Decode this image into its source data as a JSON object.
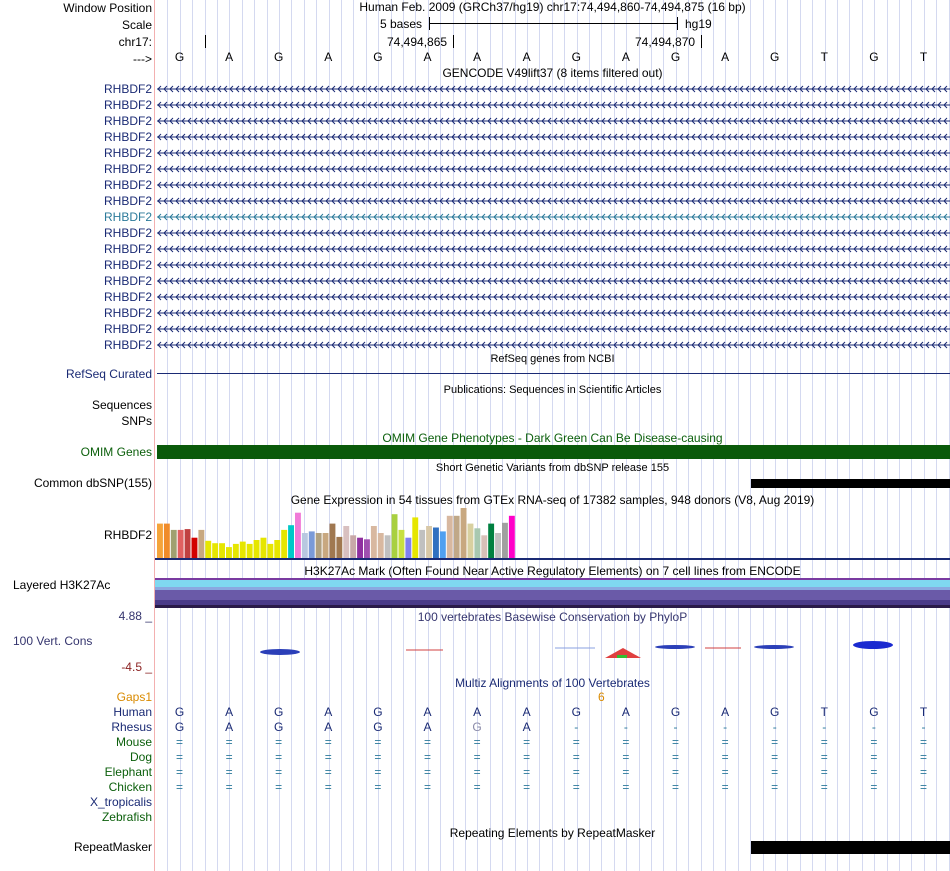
{
  "header": {
    "window_position_label": "Window Position",
    "scale_label": "Scale",
    "chrom_label": "chr17:",
    "strand_label": "--->",
    "position_text": "Human Feb. 2009 (GRCh37/hg19)   chr17:74,494,860-74,494,875 (16 bp)",
    "scale_text": "5 bases",
    "assembly": "hg19",
    "coord_1": "74,494,865",
    "coord_2": "74,494,870"
  },
  "ref_bases": [
    "G",
    "A",
    "G",
    "A",
    "G",
    "A",
    "A",
    "A",
    "G",
    "A",
    "G",
    "A",
    "G",
    "T",
    "G",
    "T"
  ],
  "gencode": {
    "title": "GENCODE V49lift37 (8 items filtered out)",
    "rows": [
      {
        "label": "RHBDF2",
        "highlight": false
      },
      {
        "label": "RHBDF2",
        "highlight": false
      },
      {
        "label": "RHBDF2",
        "highlight": false
      },
      {
        "label": "RHBDF2",
        "highlight": false
      },
      {
        "label": "RHBDF2",
        "highlight": false
      },
      {
        "label": "RHBDF2",
        "highlight": false
      },
      {
        "label": "RHBDF2",
        "highlight": false
      },
      {
        "label": "RHBDF2",
        "highlight": false
      },
      {
        "label": "RHBDF2",
        "highlight": true
      },
      {
        "label": "RHBDF2",
        "highlight": false
      },
      {
        "label": "RHBDF2",
        "highlight": false
      },
      {
        "label": "RHBDF2",
        "highlight": false
      },
      {
        "label": "RHBDF2",
        "highlight": false
      },
      {
        "label": "RHBDF2",
        "highlight": false
      },
      {
        "label": "RHBDF2",
        "highlight": false
      },
      {
        "label": "RHBDF2",
        "highlight": false
      },
      {
        "label": "RHBDF2",
        "highlight": false
      }
    ]
  },
  "refseq": {
    "title": "RefSeq genes from NCBI",
    "label": "RefSeq Curated"
  },
  "pubs": {
    "title": "Publications: Sequences in Scientific Articles",
    "label_1": "Sequences",
    "label_2": "SNPs"
  },
  "omim": {
    "title": "OMIM Gene Phenotypes - Dark Green Can Be Disease-causing",
    "label": "OMIM Genes",
    "color": "#0a5a0a"
  },
  "dbsnp": {
    "title": "Short Genetic Variants from dbSNP release 155",
    "label": "Common dbSNP(155)"
  },
  "gtex": {
    "title": "Gene Expression in 54 tissues from GTEx RNA-seq of 17382 samples, 948 donors (V8, Aug 2019)",
    "label": "RHBDF2",
    "bars": [
      {
        "v": 0.44,
        "c": "#f5a33a"
      },
      {
        "v": 0.44,
        "c": "#f08b2a"
      },
      {
        "v": 0.36,
        "c": "#a0a070"
      },
      {
        "v": 0.36,
        "c": "#e06060"
      },
      {
        "v": 0.37,
        "c": "#c04040"
      },
      {
        "v": 0.26,
        "c": "#d20000"
      },
      {
        "v": 0.36,
        "c": "#c8a880"
      },
      {
        "v": 0.22,
        "c": "#e6e600"
      },
      {
        "v": 0.19,
        "c": "#e6e600"
      },
      {
        "v": 0.19,
        "c": "#e6e600"
      },
      {
        "v": 0.14,
        "c": "#e6e600"
      },
      {
        "v": 0.18,
        "c": "#e6e600"
      },
      {
        "v": 0.21,
        "c": "#e6e600"
      },
      {
        "v": 0.18,
        "c": "#e6e600"
      },
      {
        "v": 0.23,
        "c": "#e6e600"
      },
      {
        "v": 0.26,
        "c": "#e6e600"
      },
      {
        "v": 0.18,
        "c": "#e6e600"
      },
      {
        "v": 0.23,
        "c": "#e6e600"
      },
      {
        "v": 0.36,
        "c": "#e6e600"
      },
      {
        "v": 0.42,
        "c": "#00c8c8"
      },
      {
        "v": 0.58,
        "c": "#f07ad8"
      },
      {
        "v": 0.32,
        "c": "#b8c8e0"
      },
      {
        "v": 0.34,
        "c": "#7a9ad8"
      },
      {
        "v": 0.32,
        "c": "#b0a080"
      },
      {
        "v": 0.32,
        "c": "#c8a880"
      },
      {
        "v": 0.44,
        "c": "#a07850"
      },
      {
        "v": 0.27,
        "c": "#a07850"
      },
      {
        "v": 0.41,
        "c": "#d8c0c0"
      },
      {
        "v": 0.29,
        "c": "#c8a8a8"
      },
      {
        "v": 0.26,
        "c": "#9030a0"
      },
      {
        "v": 0.24,
        "c": "#a050b0"
      },
      {
        "v": 0.41,
        "c": "#d8b8a0"
      },
      {
        "v": 0.32,
        "c": "#d8b8a0"
      },
      {
        "v": 0.29,
        "c": "#c0c0c0"
      },
      {
        "v": 0.56,
        "c": "#a8d040"
      },
      {
        "v": 0.36,
        "c": "#c8e040"
      },
      {
        "v": 0.26,
        "c": "#8080f0"
      },
      {
        "v": 0.52,
        "c": "#e6e600"
      },
      {
        "v": 0.36,
        "c": "#c0c0c0"
      },
      {
        "v": 0.41,
        "c": "#d8c8a8"
      },
      {
        "v": 0.39,
        "c": "#3070c0"
      },
      {
        "v": 0.34,
        "c": "#50a0f0"
      },
      {
        "v": 0.54,
        "c": "#d8b8a0"
      },
      {
        "v": 0.54,
        "c": "#c0a888"
      },
      {
        "v": 0.64,
        "c": "#c8a880"
      },
      {
        "v": 0.44,
        "c": "#d8d0a0"
      },
      {
        "v": 0.38,
        "c": "#a8c8b0"
      },
      {
        "v": 0.29,
        "c": "#d8c0b8"
      },
      {
        "v": 0.44,
        "c": "#008040"
      },
      {
        "v": 0.32,
        "c": "#c0c0c0"
      },
      {
        "v": 0.45,
        "c": "#a0a0a0"
      },
      {
        "v": 0.54,
        "c": "#ff00c8"
      }
    ]
  },
  "h3k27ac": {
    "title": "H3K27Ac Mark (Often Found Near Active Regulatory Elements) on 7 cell lines from ENCODE",
    "label": "Layered H3K27Ac"
  },
  "phylop": {
    "title": "100 vertebrates Basewise Conservation by PhyloP",
    "label": "100 Vert. Cons",
    "max": "4.88 _",
    "min": "-4.5 _"
  },
  "multiz": {
    "title": "Multiz Alignments of 100 Vertebrates",
    "gaps_label": "Gaps1",
    "gap_marker": "6",
    "species": [
      {
        "name": "Human",
        "color": "#1a2a74",
        "bases": [
          "G",
          "A",
          "G",
          "A",
          "G",
          "A",
          "A",
          "A",
          "G",
          "A",
          "G",
          "A",
          "G",
          "T",
          "G",
          "T"
        ]
      },
      {
        "name": "Rhesus",
        "color": "#1a2a74",
        "bases": [
          "G",
          "A",
          "G",
          "A",
          "G",
          "A",
          "G",
          "A",
          "-",
          "-",
          "-",
          "-",
          "-",
          "-",
          "-",
          "-"
        ]
      },
      {
        "name": "Mouse",
        "color": "#0b5f0b",
        "bases": [
          "=",
          "=",
          "=",
          "=",
          "=",
          "=",
          "=",
          "=",
          "=",
          "=",
          "=",
          "=",
          "=",
          "=",
          "=",
          "="
        ]
      },
      {
        "name": "Dog",
        "color": "#0b5f0b",
        "bases": [
          "=",
          "=",
          "=",
          "=",
          "=",
          "=",
          "=",
          "=",
          "=",
          "=",
          "=",
          "=",
          "=",
          "=",
          "=",
          "="
        ]
      },
      {
        "name": "Elephant",
        "color": "#0b5f0b",
        "bases": [
          "=",
          "=",
          "=",
          "=",
          "=",
          "=",
          "=",
          "=",
          "=",
          "=",
          "=",
          "=",
          "=",
          "=",
          "=",
          "="
        ]
      },
      {
        "name": "Chicken",
        "color": "#0b5f0b",
        "bases": [
          "=",
          "=",
          "=",
          "=",
          "=",
          "=",
          "=",
          "=",
          "=",
          "=",
          "=",
          "=",
          "=",
          "=",
          "=",
          "="
        ]
      },
      {
        "name": "X_tropicalis",
        "color": "#1a2a74",
        "bases": []
      },
      {
        "name": "Zebrafish",
        "color": "#0b5f0b",
        "bases": []
      }
    ]
  },
  "repeatmasker": {
    "title": "Repeating Elements by RepeatMasker",
    "label": "RepeatMasker"
  }
}
